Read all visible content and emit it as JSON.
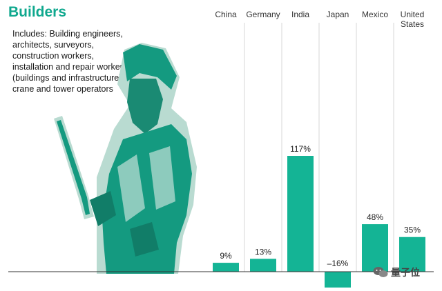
{
  "header": {
    "title": "Builders",
    "description": "Includes: Building engineers, architects, surveyors, construction workers, installation and repair workers (buildings and infrastructure), crane and tower operators"
  },
  "colors": {
    "accent": "#0fa88e",
    "bar": "#14b495",
    "gridline": "#d7d7d7",
    "baseline": "#333333"
  },
  "icons": {
    "illustration": "welder-illustration",
    "watermark": "wechat-icon"
  },
  "watermark": {
    "text": "量子位"
  },
  "chart_data": {
    "type": "bar",
    "title": "",
    "xlabel": "",
    "ylabel": "",
    "categories": [
      "China",
      "Germany",
      "India",
      "Japan",
      "Mexico",
      "United States"
    ],
    "values": [
      9,
      13,
      117,
      -16,
      48,
      35
    ],
    "data_labels": [
      "9%",
      "13%",
      "117%",
      "–16%",
      "48%",
      "35%"
    ],
    "ylim": [
      -16,
      117
    ],
    "grid": true,
    "legend": "none"
  }
}
